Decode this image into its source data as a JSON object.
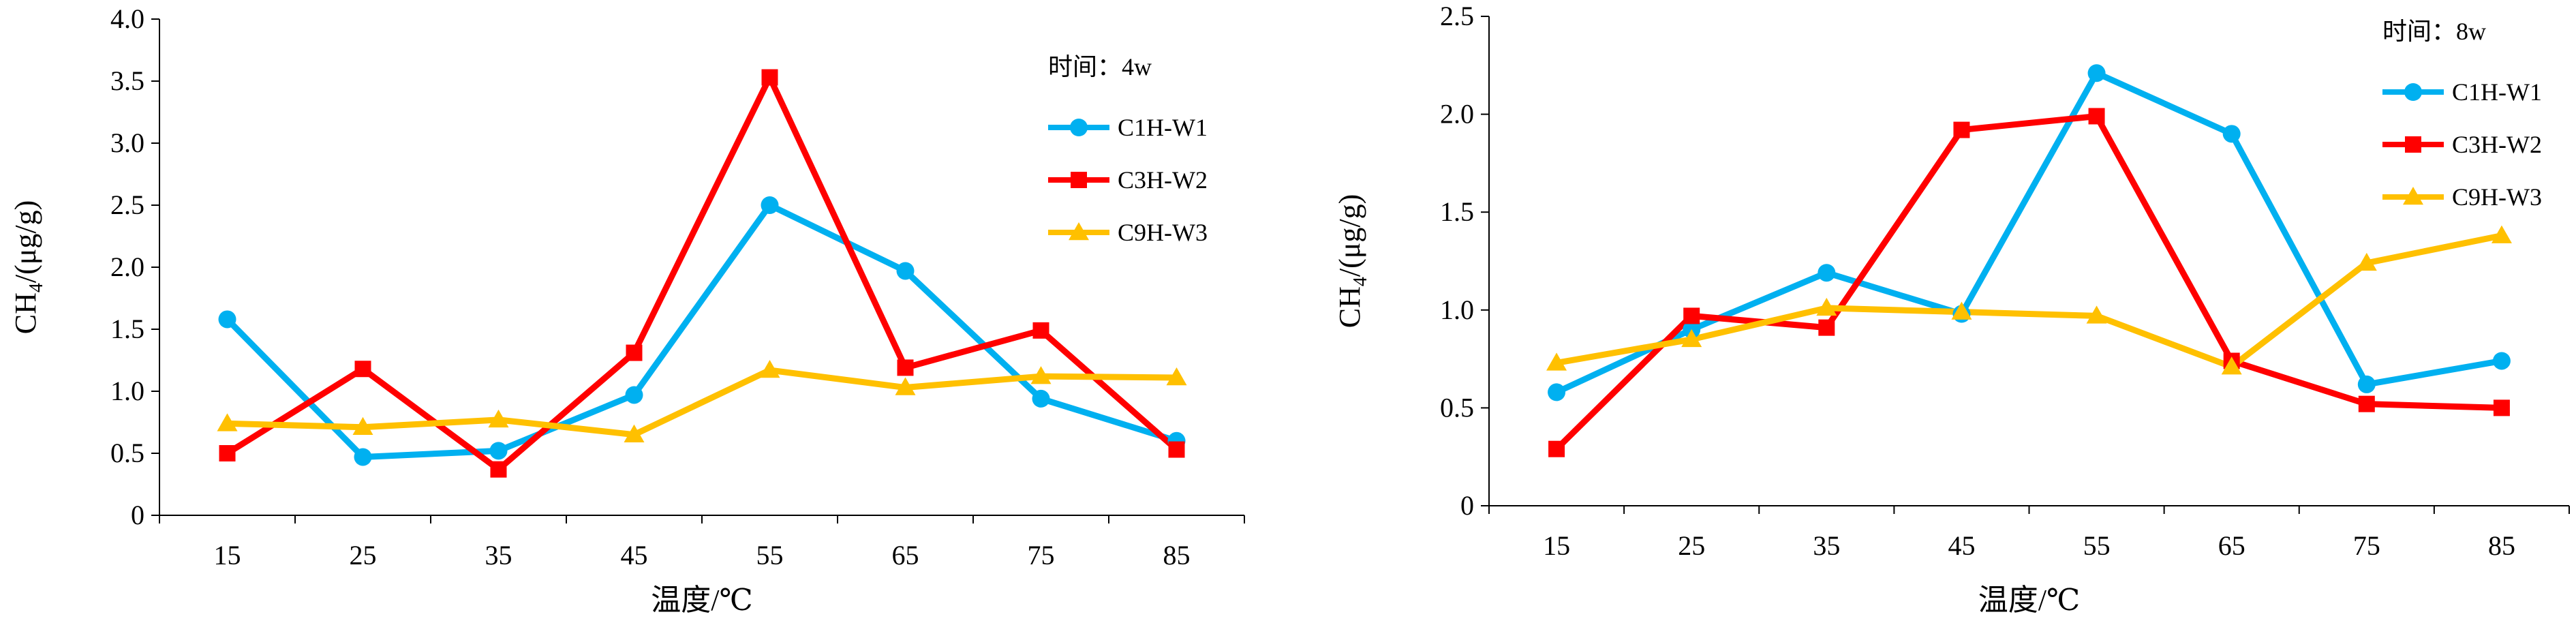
{
  "chart_data": [
    {
      "type": "line",
      "legend_title": "时间：4w",
      "xlabel": "温度/℃",
      "ylabel_main": "CH",
      "ylabel_sub": "4",
      "ylabel_rest": "/(μg/g)",
      "categories": [
        "15",
        "25",
        "35",
        "45",
        "55",
        "65",
        "75",
        "85"
      ],
      "ylim": [
        0,
        4.0
      ],
      "yticks": [
        "0",
        "0.5",
        "1.0",
        "1.5",
        "2.0",
        "2.5",
        "3.0",
        "3.5",
        "4.0"
      ],
      "legend_position": "top-right",
      "grid": false,
      "series": [
        {
          "name": "C1H-W1",
          "color": "#00B0F0",
          "marker": "circle",
          "values": [
            1.58,
            0.47,
            0.52,
            0.97,
            2.5,
            1.97,
            0.94,
            0.6
          ]
        },
        {
          "name": "C3H-W2",
          "color": "#FF0000",
          "marker": "square",
          "values": [
            0.5,
            1.18,
            0.37,
            1.31,
            3.53,
            1.19,
            1.49,
            0.53
          ]
        },
        {
          "name": "C9H-W3",
          "color": "#FFC000",
          "marker": "triangle",
          "values": [
            0.74,
            0.71,
            0.77,
            0.65,
            1.17,
            1.03,
            1.12,
            1.11
          ]
        }
      ]
    },
    {
      "type": "line",
      "legend_title": "时间：8w",
      "xlabel": "温度/℃",
      "ylabel_main": "CH",
      "ylabel_sub": "4",
      "ylabel_rest": "/(μg/g)",
      "categories": [
        "15",
        "25",
        "35",
        "45",
        "55",
        "65",
        "75",
        "85"
      ],
      "ylim": [
        0,
        2.5
      ],
      "yticks": [
        "0",
        "0.5",
        "1.0",
        "1.5",
        "2.0",
        "2.5"
      ],
      "legend_position": "top-right",
      "grid": false,
      "series": [
        {
          "name": "C1H-W1",
          "color": "#00B0F0",
          "marker": "circle",
          "values": [
            0.58,
            0.9,
            1.19,
            0.98,
            2.21,
            1.9,
            0.62,
            0.74
          ]
        },
        {
          "name": "C3H-W2",
          "color": "#FF0000",
          "marker": "square",
          "values": [
            0.29,
            0.97,
            0.91,
            1.92,
            1.99,
            0.74,
            0.52,
            0.5
          ]
        },
        {
          "name": "C9H-W3",
          "color": "#FFC000",
          "marker": "triangle",
          "values": [
            0.73,
            0.85,
            1.01,
            0.99,
            0.97,
            0.71,
            1.24,
            1.38
          ]
        }
      ]
    }
  ]
}
